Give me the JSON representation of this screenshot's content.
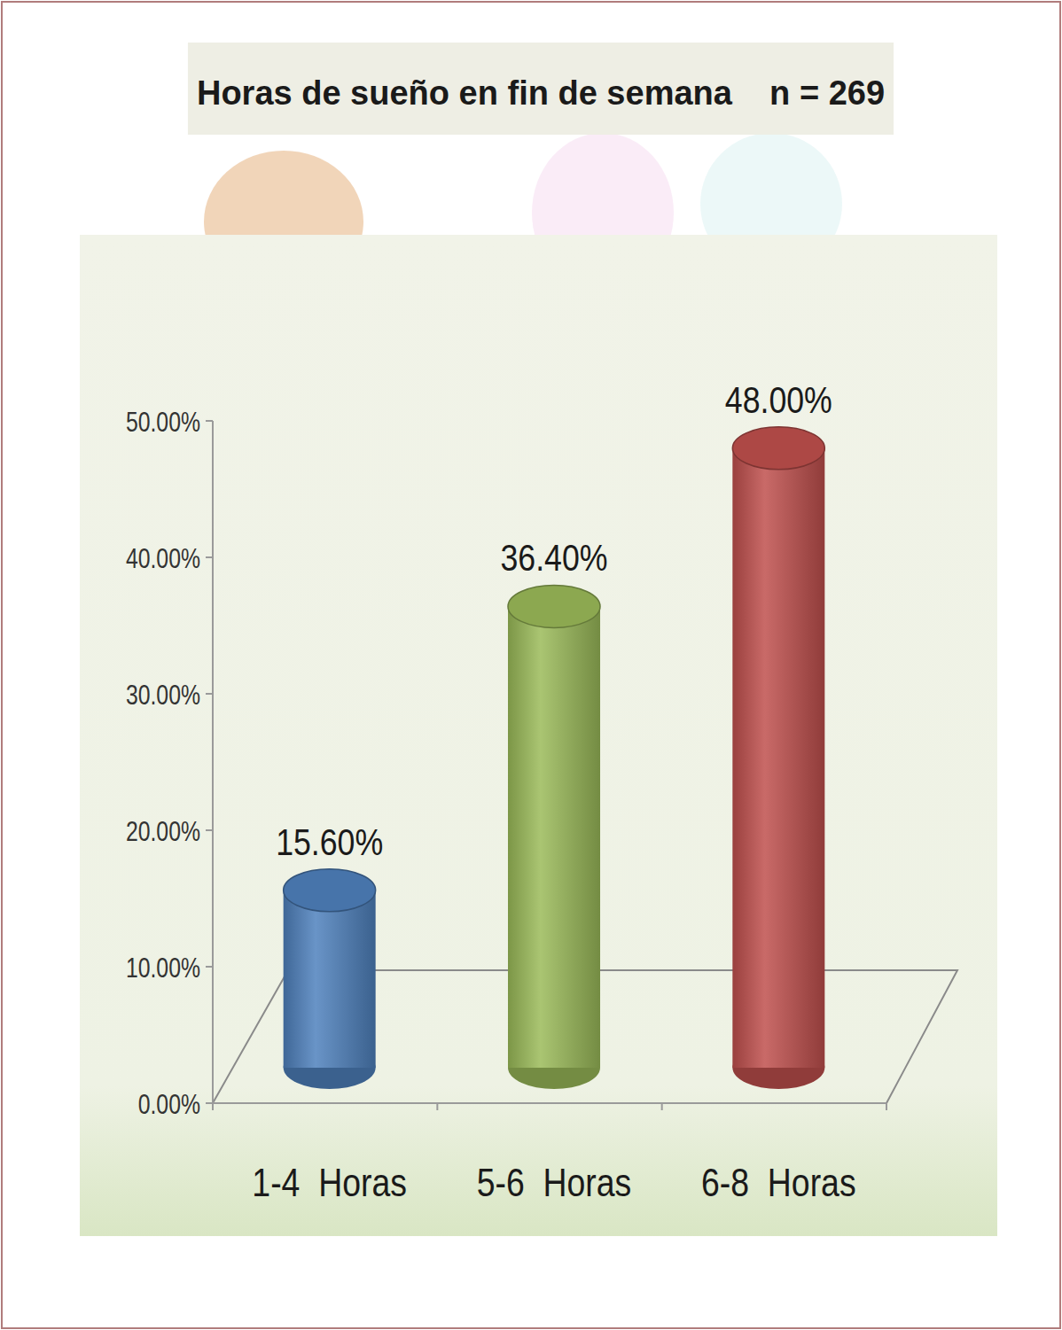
{
  "chart_data": {
    "type": "bar",
    "title": "Horas de sueño en fin de semana    n = 269",
    "categories": [
      "1-4  Horas",
      "5-6  Horas",
      "6-8  Horas"
    ],
    "values": [
      15.6,
      36.4,
      48.0
    ],
    "value_labels": [
      "15.60%",
      "36.40%",
      "48.00%"
    ],
    "colors": [
      "#4f81bd",
      "#9bbb59",
      "#c0504d"
    ],
    "ylim": [
      0,
      50
    ],
    "yticks": [
      {
        "value": 0,
        "label": "0.00%"
      },
      {
        "value": 10,
        "label": "10.00%"
      },
      {
        "value": 20,
        "label": "20.00%"
      },
      {
        "value": 30,
        "label": "30.00%"
      },
      {
        "value": 40,
        "label": "40.00%"
      },
      {
        "value": 50,
        "label": "50.00%"
      }
    ],
    "grid": false,
    "data_labels": true
  }
}
